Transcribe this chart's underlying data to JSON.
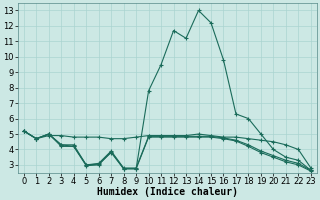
{
  "xlabel": "Humidex (Indice chaleur)",
  "background_color": "#cce8e4",
  "grid_color": "#aad4d0",
  "line_color": "#1a6b5a",
  "xlim": [
    -0.5,
    23.5
  ],
  "ylim": [
    2.5,
    13.5
  ],
  "xticks": [
    0,
    1,
    2,
    3,
    4,
    5,
    6,
    7,
    8,
    9,
    10,
    11,
    12,
    13,
    14,
    15,
    16,
    17,
    18,
    19,
    20,
    21,
    22,
    23
  ],
  "yticks": [
    3,
    4,
    5,
    6,
    7,
    8,
    9,
    10,
    11,
    12,
    13
  ],
  "line1_x": [
    0,
    1,
    2,
    3,
    4,
    5,
    6,
    7,
    8,
    9,
    10,
    11,
    12,
    13,
    14,
    15,
    16,
    17,
    18,
    19,
    20,
    21,
    22,
    23
  ],
  "line1_y": [
    5.2,
    4.7,
    4.9,
    4.9,
    4.8,
    4.8,
    4.8,
    4.7,
    4.7,
    4.8,
    4.9,
    4.9,
    4.9,
    4.9,
    5.0,
    4.9,
    4.8,
    4.8,
    4.7,
    4.6,
    4.5,
    4.3,
    4.0,
    2.8
  ],
  "line2_x": [
    0,
    1,
    2,
    3,
    4,
    5,
    6,
    7,
    8,
    9,
    10,
    11,
    12,
    13,
    14,
    15,
    16,
    17,
    18,
    19,
    20,
    21,
    22,
    23
  ],
  "line2_y": [
    5.2,
    4.7,
    5.0,
    4.3,
    4.3,
    3.0,
    3.1,
    3.9,
    2.8,
    2.8,
    4.85,
    4.85,
    4.85,
    4.85,
    4.85,
    4.85,
    4.75,
    4.6,
    4.3,
    3.9,
    3.6,
    3.3,
    3.1,
    2.65
  ],
  "line3_x": [
    0,
    1,
    2,
    3,
    4,
    5,
    6,
    7,
    8,
    9,
    10,
    11,
    12,
    13,
    14,
    15,
    16,
    17,
    18,
    19,
    20,
    21,
    22,
    23
  ],
  "line3_y": [
    5.2,
    4.7,
    5.0,
    4.3,
    4.2,
    3.0,
    3.05,
    3.8,
    2.75,
    2.75,
    4.8,
    4.8,
    4.8,
    4.8,
    4.8,
    4.8,
    4.7,
    4.55,
    4.2,
    3.8,
    3.5,
    3.2,
    3.0,
    2.6
  ],
  "line4_x": [
    0,
    1,
    2,
    3,
    4,
    5,
    6,
    7,
    8,
    9,
    10,
    11,
    12,
    13,
    14,
    15,
    16,
    17,
    18,
    19,
    20,
    21,
    22,
    23
  ],
  "line4_y": [
    5.2,
    4.7,
    5.0,
    4.2,
    4.2,
    2.95,
    3.0,
    3.85,
    2.75,
    2.75,
    7.8,
    9.5,
    11.7,
    11.2,
    13.0,
    12.2,
    9.8,
    6.3,
    6.0,
    5.0,
    4.0,
    3.5,
    3.3,
    2.65
  ],
  "tick_fontsize": 6,
  "xlabel_fontsize": 7
}
